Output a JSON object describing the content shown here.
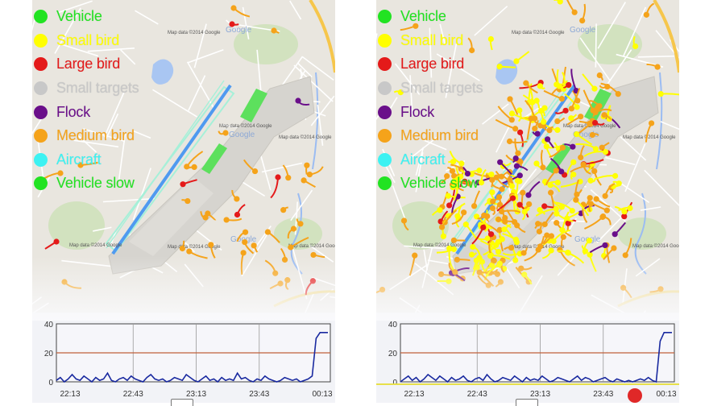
{
  "legend": [
    {
      "label": "Vehicle",
      "color": "#22e322"
    },
    {
      "label": "Small bird",
      "color": "#ffff00"
    },
    {
      "label": "Large bird",
      "color": "#e41a1a"
    },
    {
      "label": "Small targets",
      "color": "#c8c8c8"
    },
    {
      "label": "Flock",
      "color": "#6a0f8a"
    },
    {
      "label": "Medium bird",
      "color": "#f5a31a"
    },
    {
      "label": "Aircraft",
      "color": "#3df2f2"
    },
    {
      "label": "Vehicle slow",
      "color": "#22e322"
    }
  ],
  "map": {
    "watermark": "Map data ©2014 Google",
    "google_label": "Google",
    "road_color": "#f6c64b",
    "park_color": "#c8dfb0",
    "water_color": "#a9c6f2"
  },
  "screens": [
    {
      "name": "left",
      "chart_data": {
        "type": "line",
        "xlabel": "",
        "ylabel": "",
        "ylim": [
          0,
          40
        ],
        "y_ticks": [
          "40",
          "20",
          "0"
        ],
        "x_ticks": [
          "22:13",
          "22:43",
          "23:13",
          "23:43",
          "00:13"
        ],
        "threshold": 20,
        "series": [
          {
            "values": [
              1,
              3,
              0,
              2,
              5,
              2,
              1,
              4,
              2,
              0,
              3,
              1,
              2,
              6,
              1,
              0,
              2,
              3,
              1,
              4,
              2,
              1,
              0,
              3,
              5,
              2,
              1,
              2,
              0,
              1,
              3,
              2,
              1,
              5,
              3,
              1,
              0,
              2,
              4,
              1,
              2,
              0,
              3,
              1,
              2,
              1,
              6,
              2,
              3,
              1,
              0,
              2,
              1,
              4,
              2,
              1,
              0,
              1,
              3,
              2,
              1,
              2,
              0,
              1,
              2,
              4,
              30,
              34,
              34,
              34
            ]
          }
        ]
      }
    },
    {
      "name": "right",
      "chart_data": {
        "type": "line",
        "xlabel": "",
        "ylabel": "",
        "ylim": [
          0,
          40
        ],
        "y_ticks": [
          "40",
          "20",
          "0"
        ],
        "x_ticks": [
          "22:13",
          "22:43",
          "23:13",
          "23:43",
          "00:13"
        ],
        "threshold": 20,
        "series": [
          {
            "values": [
              0,
              2,
              4,
              1,
              3,
              0,
              2,
              5,
              3,
              1,
              4,
              2,
              0,
              3,
              1,
              2,
              4,
              1,
              0,
              2,
              3,
              1,
              5,
              2,
              0,
              1,
              3,
              2,
              1,
              4,
              2,
              0,
              3,
              1,
              2,
              1,
              4,
              2,
              0,
              1,
              3,
              2,
              1,
              0,
              2,
              4,
              1,
              3,
              2,
              0,
              1,
              2,
              3,
              1,
              0,
              2,
              1,
              0,
              1,
              0,
              1,
              2,
              1,
              3,
              1,
              0,
              28,
              34,
              34,
              34
            ]
          }
        ]
      }
    }
  ]
}
